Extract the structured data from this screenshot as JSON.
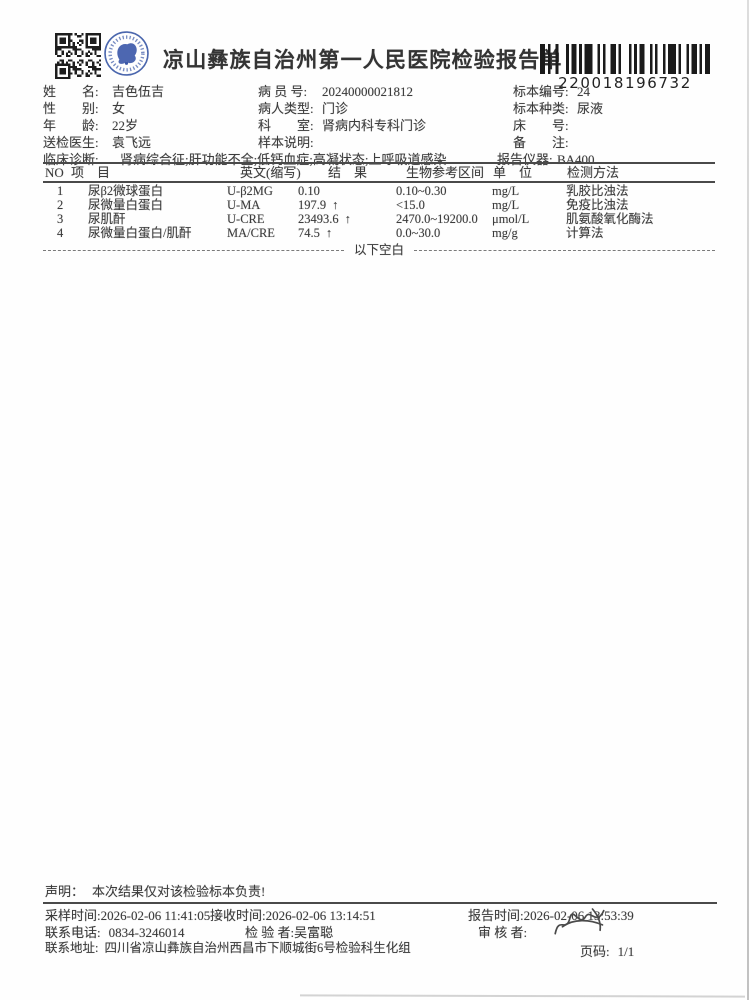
{
  "header": {
    "title": "凉山彝族自治州第一人民医院检验报告单",
    "barcode_number": "220018196732"
  },
  "patient": {
    "name_label": "姓　　名:",
    "name": "吉色伍吉",
    "patient_id_label": "病 员 号:",
    "patient_id": "20240000021812",
    "sample_no_label": "标本编号:",
    "sample_no": "24",
    "gender_label": "性　　别:",
    "gender": "女",
    "patient_type_label": "病人类型:",
    "patient_type": "门诊",
    "sample_type_label": "标本种类:",
    "sample_type": "尿液",
    "age_label": "年　　龄:",
    "age": "22岁",
    "department_label": "科　　室:",
    "department": "肾病内科专科门诊",
    "bed_no_label": "床　　号:",
    "bed_no": "",
    "referring_doctor_label": "送检医生:",
    "referring_doctor": "袁飞远",
    "sample_note_label": "样本说明:",
    "sample_note": "",
    "remark_label": "备　　注:",
    "remark": "",
    "diagnosis_label": "临床诊断:",
    "diagnosis": "肾病综合征;肝功能不全;低钙血症;高凝状态;上呼吸道感染",
    "instrument_label": "报告仪器:",
    "instrument": "BA400"
  },
  "results": {
    "columns": {
      "no": "NO",
      "item": "项　目",
      "abbr": "英文(缩写)",
      "result": "结　果",
      "range": "生物参考区间",
      "unit": "单　位",
      "method": "检测方法"
    },
    "rows": [
      {
        "no": "1",
        "item": "尿β2微球蛋白",
        "abbr": "U-β2MG",
        "result": "0.10",
        "arrow": "",
        "range": "0.10~0.30",
        "unit": "mg/L",
        "method": "乳胶比浊法"
      },
      {
        "no": "2",
        "item": "尿微量白蛋白",
        "abbr": "U-MA",
        "result": "197.9",
        "arrow": "↑",
        "range": "<15.0",
        "unit": "mg/L",
        "method": "免疫比浊法"
      },
      {
        "no": "3",
        "item": "尿肌酐",
        "abbr": "U-CRE",
        "result": "23493.6",
        "arrow": "↑",
        "range": "2470.0~19200.0",
        "unit": "μmol/L",
        "method": "肌氨酸氧化酶法"
      },
      {
        "no": "4",
        "item": "尿微量白蛋白/肌酐",
        "abbr": "MA/CRE",
        "result": "74.5",
        "arrow": "↑",
        "range": "0.0~30.0",
        "unit": "mg/g",
        "method": "计算法"
      }
    ],
    "end_marker": "以下空白"
  },
  "footer": {
    "statement_label": "声明：",
    "statement": "本次结果仅对该检验标本负责!",
    "sampling_time_label": "采样时间:",
    "sampling_time": "2026-02-06 11:41:05",
    "receive_time_label": "接收时间:",
    "receive_time": "2026-02-06 13:14:51",
    "report_time_label": "报告时间:",
    "report_time": "2026-02-06 13:53:39",
    "phone_label": "联系电话:",
    "phone": "0834-3246014",
    "tester_label": "检 验 者:",
    "tester": "吴富聪",
    "reviewer_label": "审 核 者:",
    "address_label": "联系地址:",
    "address": "四川省凉山彝族自治州西昌市下顺城街6号检验科生化组",
    "page_label": "页码:",
    "page": "1/1"
  }
}
